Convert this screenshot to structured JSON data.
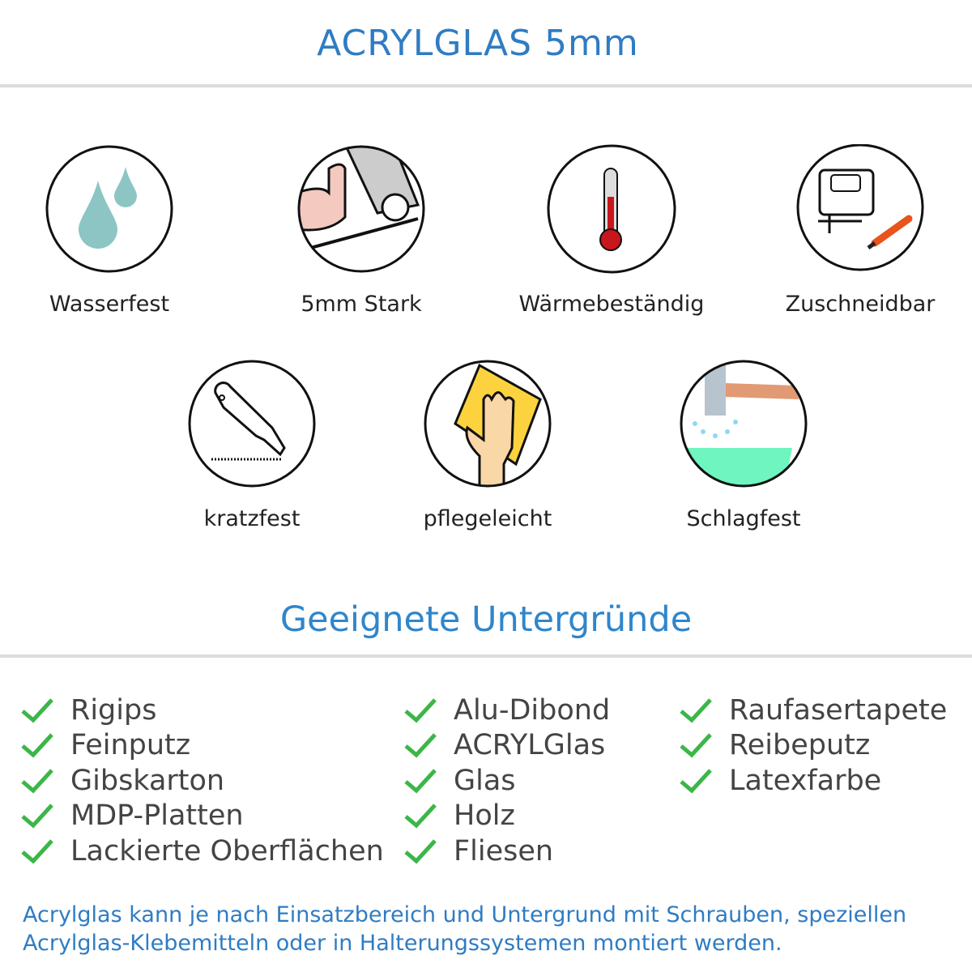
{
  "title": "ACRYLGLAS 5mm",
  "features": [
    {
      "label": "Wasserfest",
      "icon": "water-drops-icon"
    },
    {
      "label": "5mm Stark",
      "icon": "strong-arm-icon"
    },
    {
      "label": "Wärmebeständig",
      "icon": "thermometer-icon"
    },
    {
      "label": "Zuschneidbar",
      "icon": "jigsaw-cutter-icon"
    },
    {
      "label": "kratzfest",
      "icon": "box-cutter-icon"
    },
    {
      "label": "pflegeleicht",
      "icon": "hand-cloth-icon"
    },
    {
      "label": "Schlagfest",
      "icon": "hammer-icon"
    }
  ],
  "surfaces_title": "Geeignete Untergründe",
  "surfaces": [
    [
      "Rigips",
      "Feinputz",
      "Gibskarton",
      "MDP-Platten",
      "Lackierte Oberflächen"
    ],
    [
      "Alu-Dibond",
      "ACRYLGlas",
      "Glas",
      "Holz",
      "Fliesen"
    ],
    [
      "Raufasertapete",
      "Reibeputz",
      "Latexfarbe"
    ]
  ],
  "note": "Acrylglas kann je nach Einsatzbereich und Untergrund mit Schrauben, speziellen Acrylglas-Klebemitteln oder in Halterungssystemen montiert werden.",
  "colors": {
    "accent": "#2f7cc3",
    "check": "#3cb648"
  }
}
